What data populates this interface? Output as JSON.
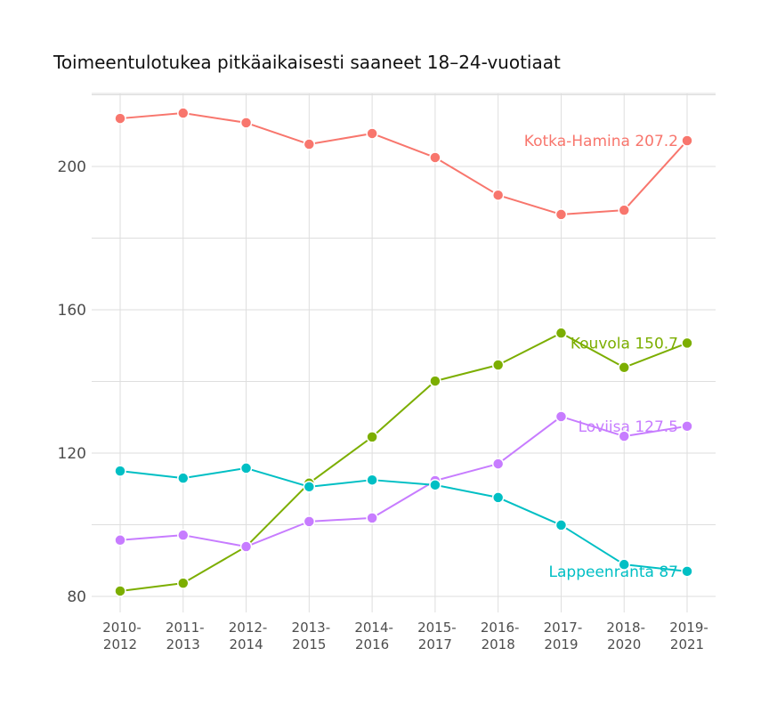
{
  "chart_data": {
    "type": "line",
    "title": "Toimeentulotukea pitkäaikaisesti saaneet 18–24-vuotiaat",
    "xlabel": "",
    "ylabel": "",
    "categories": [
      "2010-2012",
      "2011-2013",
      "2012-2014",
      "2013-2015",
      "2014-2016",
      "2015-2017",
      "2016-2018",
      "2017-2019",
      "2018-2020",
      "2019-2021"
    ],
    "category_lines": [
      [
        "2010-",
        "2012"
      ],
      [
        "2011-",
        "2013"
      ],
      [
        "2012-",
        "2014"
      ],
      [
        "2013-",
        "2015"
      ],
      [
        "2014-",
        "2016"
      ],
      [
        "2015-",
        "2017"
      ],
      [
        "2016-",
        "2018"
      ],
      [
        "2017-",
        "2019"
      ],
      [
        "2018-",
        "2020"
      ],
      [
        "2019-",
        "2021"
      ]
    ],
    "yticks": [
      80,
      120,
      160,
      200
    ],
    "ylim": [
      78,
      220
    ],
    "grid": true,
    "legend": "none (direct end labels)",
    "series": [
      {
        "name": "Kotka-Hamina",
        "color": "#F8766D",
        "end_label": "Kotka-Hamina 207.2",
        "values": [
          213.4,
          214.9,
          212.2,
          206.2,
          209.2,
          202.5,
          192.0,
          186.6,
          187.8,
          207.2
        ]
      },
      {
        "name": "Kouvola",
        "color": "#7CAE00",
        "end_label": "Kouvola 150.7",
        "values": [
          81.5,
          83.7,
          93.9,
          111.6,
          124.5,
          140.1,
          144.6,
          153.5,
          143.9,
          150.7
        ]
      },
      {
        "name": "Loviisa",
        "color": "#C77CFF",
        "end_label": "Loviisa 127.5",
        "values": [
          95.7,
          97.1,
          93.9,
          100.9,
          101.9,
          112.3,
          117.0,
          130.2,
          124.7,
          127.5
        ]
      },
      {
        "name": "Lappeenranta",
        "color": "#00BFC4",
        "end_label": "Lappeenranta 87",
        "values": [
          115.0,
          113.0,
          115.8,
          110.6,
          112.5,
          111.1,
          107.6,
          99.9,
          88.9,
          87.0
        ]
      }
    ]
  }
}
